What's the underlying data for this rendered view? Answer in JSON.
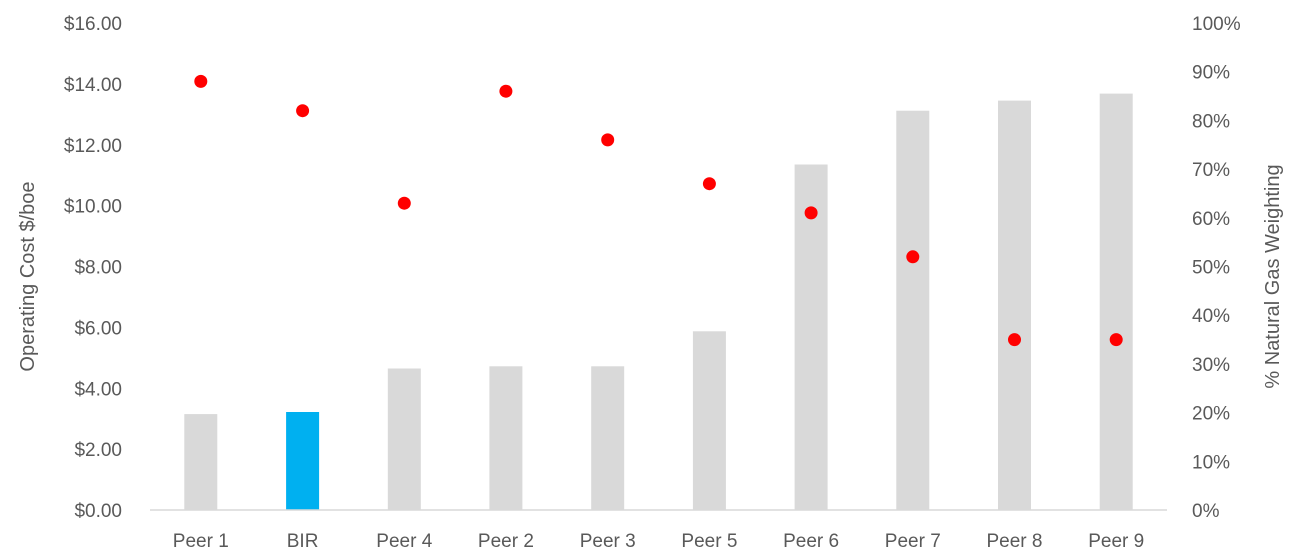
{
  "chart_data": {
    "type": "bar",
    "categories": [
      "Peer 1",
      "BIR",
      "Peer 4",
      "Peer 2",
      "Peer 3",
      "Peer 5",
      "Peer 6",
      "Peer 7",
      "Peer 8",
      "Peer 9"
    ],
    "series": [
      {
        "name": "",
        "type": "bar",
        "axis": "left",
        "values": [
          3.15,
          3.22,
          4.65,
          4.72,
          4.72,
          5.87,
          11.35,
          13.12,
          13.45,
          13.68
        ],
        "colors": [
          "#d9d9d9",
          "#00b0f0",
          "#d9d9d9",
          "#d9d9d9",
          "#d9d9d9",
          "#d9d9d9",
          "#d9d9d9",
          "#d9d9d9",
          "#d9d9d9",
          "#d9d9d9"
        ]
      },
      {
        "name": "",
        "type": "scatter",
        "axis": "right",
        "values": [
          88,
          82,
          63,
          86,
          76,
          67,
          61,
          52,
          35,
          35
        ],
        "color": "#ff0000"
      }
    ],
    "ylabel": "Operating Cost $/boe",
    "y2label": "% Natural Gas Weighting",
    "ylim": [
      0,
      16
    ],
    "y2lim": [
      0,
      100
    ],
    "yticks": [
      "$0.00",
      "$2.00",
      "$4.00",
      "$6.00",
      "$8.00",
      "$10.00",
      "$12.00",
      "$14.00",
      "$16.00"
    ],
    "y2ticks": [
      "0%",
      "10%",
      "20%",
      "30%",
      "40%",
      "50%",
      "60%",
      "70%",
      "80%",
      "90%",
      "100%"
    ],
    "grid": false,
    "legend": "none"
  }
}
